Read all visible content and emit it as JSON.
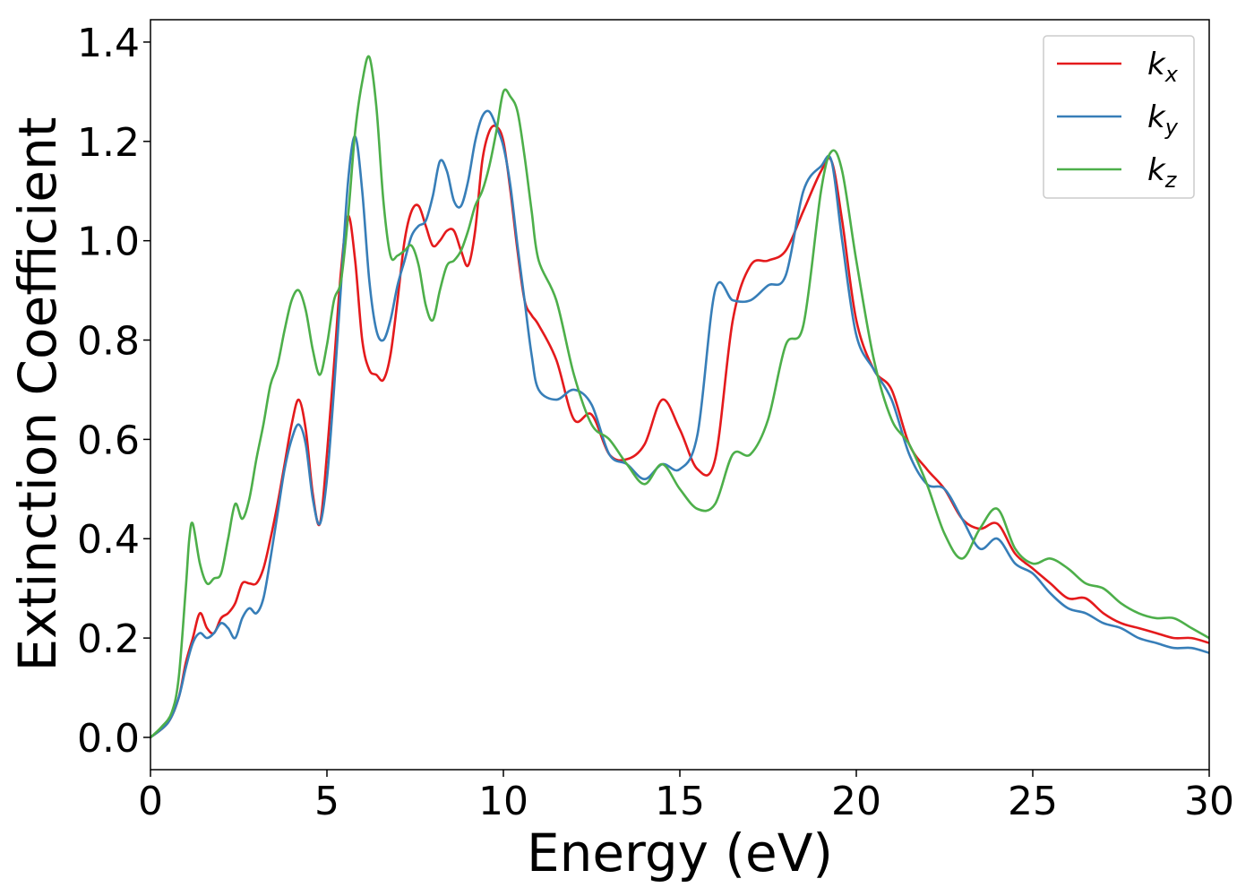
{
  "chart_data": {
    "type": "line",
    "title": "",
    "xlabel": "Energy (eV)",
    "ylabel": "Extinction Coefficient",
    "xlim": [
      0,
      30
    ],
    "ylim": [
      -0.065,
      1.445
    ],
    "xticks": [
      0,
      5,
      10,
      15,
      20,
      25,
      30
    ],
    "yticks": [
      0.0,
      0.2,
      0.4,
      0.6,
      0.8,
      1.0,
      1.2,
      1.4
    ],
    "grid": false,
    "legend_position": "top-right",
    "series": [
      {
        "name": "k",
        "subscript": "x",
        "color": "#e41a1c",
        "x": [
          0,
          0.5,
          0.8,
          1.0,
          1.2,
          1.4,
          1.6,
          1.8,
          2.0,
          2.2,
          2.4,
          2.6,
          2.8,
          3.0,
          3.2,
          3.4,
          3.6,
          3.8,
          4.0,
          4.2,
          4.4,
          4.6,
          4.8,
          5.0,
          5.2,
          5.4,
          5.6,
          5.8,
          6.0,
          6.2,
          6.4,
          6.6,
          6.8,
          7.0,
          7.2,
          7.4,
          7.6,
          7.8,
          8.0,
          8.2,
          8.4,
          8.6,
          8.8,
          9.0,
          9.2,
          9.4,
          9.6,
          9.8,
          10.0,
          10.2,
          10.4,
          10.6,
          10.8,
          11.0,
          11.5,
          12.0,
          12.5,
          13.0,
          13.5,
          14.0,
          14.5,
          15.0,
          15.5,
          16.0,
          16.5,
          17.0,
          17.5,
          18.0,
          18.5,
          19.0,
          19.3,
          19.6,
          20.0,
          20.5,
          21.0,
          21.5,
          22.0,
          22.5,
          23.0,
          23.5,
          24.0,
          24.5,
          25.0,
          25.5,
          26.0,
          26.5,
          27.0,
          27.5,
          28.0,
          28.5,
          29.0,
          29.5,
          30.0
        ],
        "y": [
          0.0,
          0.03,
          0.08,
          0.15,
          0.2,
          0.25,
          0.22,
          0.21,
          0.24,
          0.25,
          0.27,
          0.31,
          0.31,
          0.31,
          0.34,
          0.4,
          0.47,
          0.55,
          0.63,
          0.68,
          0.62,
          0.49,
          0.43,
          0.57,
          0.75,
          0.94,
          1.05,
          0.96,
          0.8,
          0.74,
          0.73,
          0.72,
          0.77,
          0.88,
          1.0,
          1.06,
          1.07,
          1.03,
          0.99,
          1.0,
          1.02,
          1.02,
          0.98,
          0.95,
          1.02,
          1.16,
          1.22,
          1.23,
          1.2,
          1.1,
          0.98,
          0.88,
          0.85,
          0.83,
          0.76,
          0.64,
          0.65,
          0.57,
          0.56,
          0.59,
          0.68,
          0.62,
          0.54,
          0.56,
          0.84,
          0.95,
          0.96,
          0.98,
          1.06,
          1.14,
          1.16,
          1.04,
          0.84,
          0.74,
          0.7,
          0.59,
          0.54,
          0.5,
          0.44,
          0.42,
          0.43,
          0.37,
          0.34,
          0.31,
          0.28,
          0.28,
          0.25,
          0.23,
          0.22,
          0.21,
          0.2,
          0.2,
          0.19
        ]
      },
      {
        "name": "k",
        "subscript": "y",
        "color": "#377eb8",
        "x": [
          0,
          0.5,
          0.8,
          1.0,
          1.2,
          1.4,
          1.6,
          1.8,
          2.0,
          2.2,
          2.4,
          2.6,
          2.8,
          3.0,
          3.2,
          3.4,
          3.6,
          3.8,
          4.0,
          4.2,
          4.4,
          4.6,
          4.8,
          5.0,
          5.2,
          5.4,
          5.6,
          5.8,
          6.0,
          6.2,
          6.4,
          6.6,
          6.8,
          7.0,
          7.2,
          7.4,
          7.6,
          7.8,
          8.0,
          8.2,
          8.4,
          8.6,
          8.8,
          9.0,
          9.2,
          9.4,
          9.6,
          9.8,
          10.0,
          10.2,
          10.4,
          10.6,
          10.8,
          11.0,
          11.5,
          12.0,
          12.5,
          13.0,
          13.5,
          14.0,
          14.5,
          15.0,
          15.5,
          16.0,
          16.5,
          17.0,
          17.5,
          18.0,
          18.5,
          19.0,
          19.3,
          19.6,
          20.0,
          20.5,
          21.0,
          21.5,
          22.0,
          22.5,
          23.0,
          23.5,
          24.0,
          24.5,
          25.0,
          25.5,
          26.0,
          26.5,
          27.0,
          27.5,
          28.0,
          28.5,
          29.0,
          29.5,
          30.0
        ],
        "y": [
          0.0,
          0.03,
          0.08,
          0.14,
          0.19,
          0.21,
          0.2,
          0.21,
          0.23,
          0.22,
          0.2,
          0.24,
          0.26,
          0.25,
          0.28,
          0.36,
          0.45,
          0.54,
          0.6,
          0.63,
          0.59,
          0.48,
          0.43,
          0.52,
          0.7,
          0.91,
          1.12,
          1.21,
          1.1,
          0.92,
          0.82,
          0.8,
          0.84,
          0.91,
          0.96,
          1.01,
          1.03,
          1.04,
          1.09,
          1.16,
          1.14,
          1.08,
          1.07,
          1.12,
          1.2,
          1.25,
          1.26,
          1.23,
          1.19,
          1.11,
          0.99,
          0.88,
          0.77,
          0.7,
          0.68,
          0.7,
          0.67,
          0.57,
          0.55,
          0.52,
          0.55,
          0.54,
          0.61,
          0.9,
          0.88,
          0.88,
          0.91,
          0.93,
          1.1,
          1.15,
          1.16,
          1.0,
          0.81,
          0.74,
          0.68,
          0.57,
          0.51,
          0.5,
          0.44,
          0.38,
          0.4,
          0.35,
          0.33,
          0.29,
          0.26,
          0.25,
          0.23,
          0.22,
          0.2,
          0.19,
          0.18,
          0.18,
          0.17
        ]
      },
      {
        "name": "k",
        "subscript": "z",
        "color": "#4daf4a",
        "x": [
          0,
          0.3,
          0.6,
          0.8,
          1.0,
          1.1,
          1.2,
          1.4,
          1.6,
          1.8,
          2.0,
          2.2,
          2.4,
          2.6,
          2.8,
          3.0,
          3.2,
          3.4,
          3.6,
          3.8,
          4.0,
          4.2,
          4.4,
          4.6,
          4.8,
          5.0,
          5.2,
          5.4,
          5.6,
          5.8,
          6.0,
          6.2,
          6.4,
          6.6,
          6.8,
          7.0,
          7.2,
          7.4,
          7.6,
          7.8,
          8.0,
          8.2,
          8.4,
          8.6,
          8.8,
          9.0,
          9.2,
          9.4,
          9.6,
          9.8,
          10.0,
          10.2,
          10.4,
          10.6,
          10.8,
          11.0,
          11.5,
          12.0,
          12.5,
          13.0,
          13.5,
          14.0,
          14.5,
          15.0,
          15.5,
          16.0,
          16.5,
          17.0,
          17.5,
          18.0,
          18.5,
          19.0,
          19.3,
          19.6,
          20.0,
          20.5,
          21.0,
          21.5,
          22.0,
          22.5,
          23.0,
          23.5,
          24.0,
          24.5,
          25.0,
          25.5,
          26.0,
          26.5,
          27.0,
          27.5,
          28.0,
          28.5,
          29.0,
          29.5,
          30.0
        ],
        "y": [
          0.0,
          0.02,
          0.05,
          0.12,
          0.3,
          0.4,
          0.43,
          0.35,
          0.31,
          0.32,
          0.33,
          0.4,
          0.47,
          0.44,
          0.48,
          0.56,
          0.63,
          0.71,
          0.75,
          0.82,
          0.88,
          0.9,
          0.86,
          0.78,
          0.73,
          0.79,
          0.88,
          0.92,
          1.05,
          1.22,
          1.32,
          1.37,
          1.27,
          1.08,
          0.97,
          0.97,
          0.98,
          0.99,
          0.95,
          0.87,
          0.84,
          0.9,
          0.95,
          0.96,
          0.98,
          1.02,
          1.07,
          1.1,
          1.15,
          1.22,
          1.3,
          1.29,
          1.26,
          1.17,
          1.06,
          0.96,
          0.88,
          0.73,
          0.63,
          0.6,
          0.55,
          0.51,
          0.55,
          0.5,
          0.46,
          0.47,
          0.57,
          0.57,
          0.64,
          0.79,
          0.83,
          1.1,
          1.18,
          1.14,
          0.96,
          0.76,
          0.64,
          0.59,
          0.51,
          0.41,
          0.36,
          0.42,
          0.46,
          0.38,
          0.35,
          0.36,
          0.34,
          0.31,
          0.3,
          0.27,
          0.25,
          0.24,
          0.24,
          0.22,
          0.2
        ]
      }
    ]
  }
}
